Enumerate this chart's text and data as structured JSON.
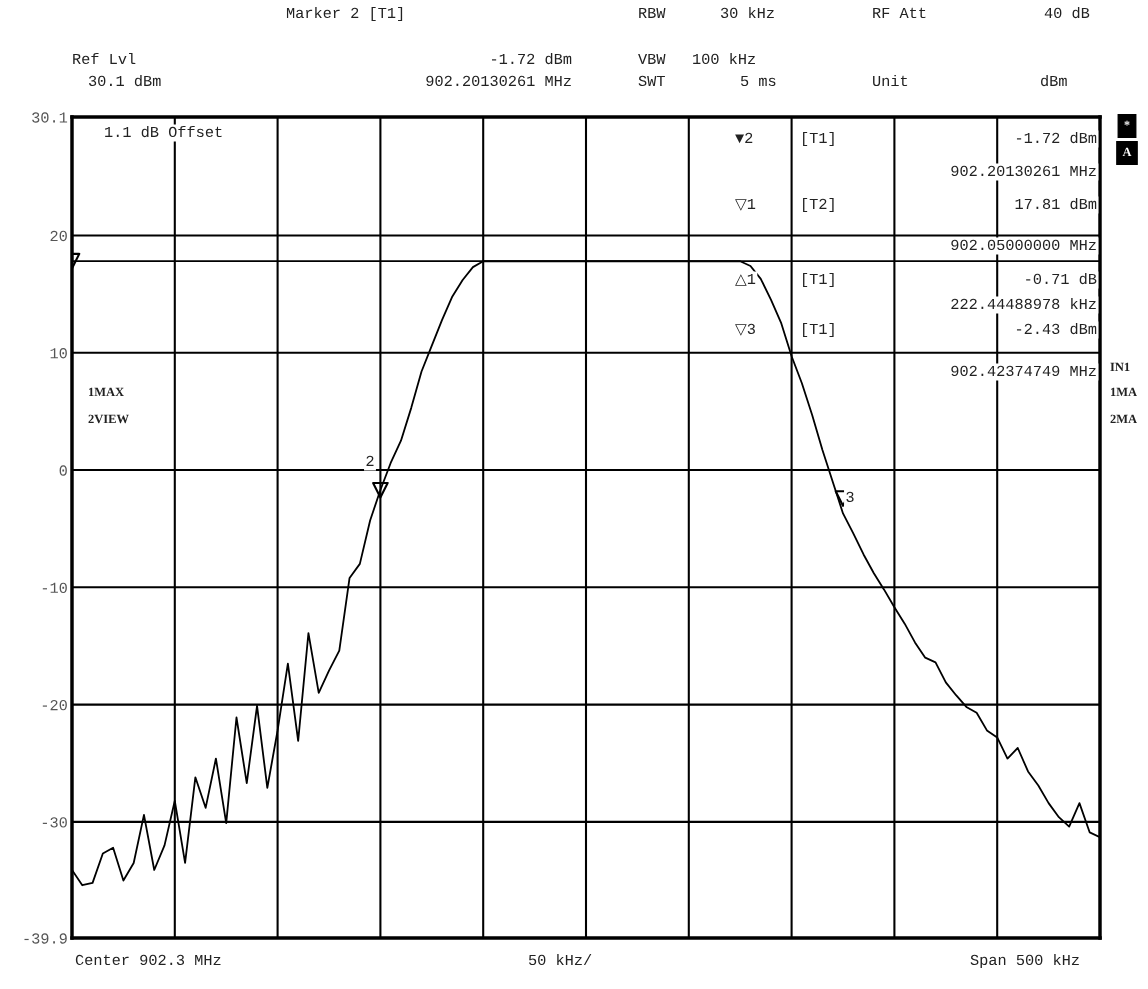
{
  "chart_data": {
    "type": "line",
    "annotations": [
      "Marker 2 [T1]",
      "RBW",
      "30 kHz",
      "RF Att",
      "40 dB",
      "Ref Lvl",
      "-1.72 dBm",
      "VBW",
      "100 kHz",
      "30.1 dBm",
      "902.20130261 MHz",
      "SWT",
      "5 ms",
      "Unit",
      "dBm",
      "1.1 dB Offset",
      "1MAX",
      "2VIEW",
      "*",
      "A",
      "IN1",
      "1MA",
      "2MA",
      "Center 902.3 MHz",
      "50 kHz/",
      "Span 500 kHz",
      "▼2",
      "[T1]",
      "-1.72 dBm",
      "902.20130261 MHz",
      "▽1",
      "[T2]",
      "17.81 dBm",
      "902.05000000 MHz",
      "△1",
      "[T1]",
      "-0.71 dB",
      "222.44488978 kHz",
      "▽3",
      "[T1]",
      "-2.43 dBm",
      "902.42374749 MHz",
      "2",
      "3"
    ],
    "categories": [
      null,
      null,
      null,
      null,
      null,
      null,
      null,
      null,
      null,
      null,
      null,
      null,
      null,
      null,
      null,
      null,
      null,
      null,
      null,
      null,
      null,
      null,
      null,
      null,
      null,
      null,
      null,
      null,
      null,
      null,
      null,
      null,
      null,
      null,
      null,
      null,
      null,
      null,
      null,
      null,
      null,
      null,
      null,
      null,
      null,
      null,
      null,
      null,
      null,
      null,
      null,
      null,
      null,
      null,
      null,
      null,
      null,
      null,
      null,
      null,
      null,
      null,
      null,
      null,
      null,
      null,
      null,
      null,
      null,
      null,
      null,
      null,
      null,
      null,
      null,
      null,
      null,
      null,
      null,
      null,
      null,
      null,
      null,
      null,
      null,
      null,
      null,
      null,
      null,
      null,
      null,
      null,
      null,
      null,
      null,
      null,
      null,
      null,
      null,
      null,
      null
    ],
    "ylim": [
      -39.9,
      30.1
    ],
    "yticks": [
      -39.9,
      -30,
      -20,
      -10,
      0,
      10,
      20,
      30.1
    ],
    "grid": true,
    "tick_labels": "y",
    "series": [
      {
        "color": "#000000",
        "values": [
          -34.1,
          -35.4,
          -35.2,
          -32.7,
          -32.2,
          -35.0,
          -33.5,
          -29.4,
          -34.1,
          -32.0,
          -28.2,
          -33.5,
          -26.2,
          -28.8,
          -24.6,
          -30.1,
          -21.1,
          -26.7,
          -20.1,
          -27.1,
          -22.2,
          -16.5,
          -23.1,
          -13.9,
          -19.0,
          -17.1,
          -15.4,
          -9.2,
          -8.0,
          -4.3,
          -1.7,
          0.6,
          2.5,
          5.3,
          8.4,
          10.6,
          12.8,
          14.8,
          16.2,
          17.3,
          17.8,
          17.8,
          17.8,
          17.8,
          17.8,
          17.8,
          17.8,
          17.8,
          17.8,
          17.8,
          17.8,
          17.8,
          17.8,
          17.8,
          17.8,
          17.8,
          17.8,
          17.8,
          17.8,
          17.8,
          17.8,
          17.8,
          17.8,
          17.8,
          17.8,
          17.8,
          17.4,
          16.3,
          14.5,
          12.5,
          9.7,
          7.4,
          4.7,
          1.7,
          -1.0,
          -3.7,
          -5.4,
          -7.2,
          -8.8,
          -10.2,
          -11.7,
          -13.1,
          -14.7,
          -16.0,
          -16.4,
          -18.1,
          -19.2,
          -20.2,
          -20.7,
          -22.2,
          -22.8,
          -24.6,
          -23.7,
          -25.7,
          -26.9,
          -28.4,
          -29.6,
          -30.4,
          -28.4,
          -30.9,
          -31.3
        ]
      },
      {
        "color": "#000000",
        "values": [
          17.81,
          17.81,
          17.81,
          17.81,
          17.81,
          17.81,
          17.81,
          17.81,
          17.81,
          17.81,
          17.81,
          17.81,
          17.81,
          17.81,
          17.81,
          17.81,
          17.81,
          17.81,
          17.81,
          17.81,
          17.81,
          17.81,
          17.81,
          17.81,
          17.81,
          17.81,
          17.81,
          17.81,
          17.81,
          17.81,
          17.81,
          17.81,
          17.81,
          17.81,
          17.81,
          17.81,
          17.81,
          17.81,
          17.81,
          17.81,
          17.81,
          17.81,
          17.81,
          17.81,
          17.81,
          17.81,
          17.81,
          17.81,
          17.81,
          17.81,
          17.81,
          17.81,
          17.81,
          17.81,
          17.81,
          17.81,
          17.81,
          17.81,
          17.81,
          17.81,
          17.81,
          17.81,
          17.81,
          17.81,
          17.81,
          17.81,
          17.81,
          17.81,
          17.81,
          17.81,
          17.81,
          17.81,
          17.81,
          17.81,
          17.81,
          17.81,
          17.81,
          17.81,
          17.81,
          17.81,
          17.81,
          17.81,
          17.81,
          17.81,
          17.81,
          17.81,
          17.81,
          17.81,
          17.81,
          17.81,
          17.81,
          17.81,
          17.81,
          17.81,
          17.81,
          17.81,
          17.81,
          17.81,
          17.81,
          17.81,
          17.81
        ]
      },
      {
        "type": "scatter",
        "marker": "triangle",
        "color": "#000000",
        "values": [
          17.81,
          null,
          null,
          null,
          null,
          null,
          null,
          null,
          null,
          null,
          null,
          null,
          null,
          null,
          null,
          null,
          null,
          null,
          null,
          null,
          null,
          null,
          null,
          null,
          null,
          null,
          null,
          null,
          null,
          null,
          -1.72,
          null,
          null,
          null,
          null,
          null,
          null,
          null,
          null,
          null,
          null,
          null,
          null,
          null,
          null,
          null,
          null,
          null,
          null,
          null,
          null,
          null,
          null,
          null,
          null,
          null,
          null,
          null,
          null,
          null,
          null,
          null,
          null,
          null,
          null,
          null,
          null,
          null,
          null,
          null,
          null,
          null,
          null,
          null,
          null,
          -2.43,
          null,
          null,
          null,
          null,
          null,
          null,
          null,
          null,
          null,
          null,
          null,
          null,
          null,
          null,
          null,
          null,
          null,
          null,
          null,
          null,
          null,
          null,
          null,
          null,
          null
        ]
      }
    ]
  }
}
